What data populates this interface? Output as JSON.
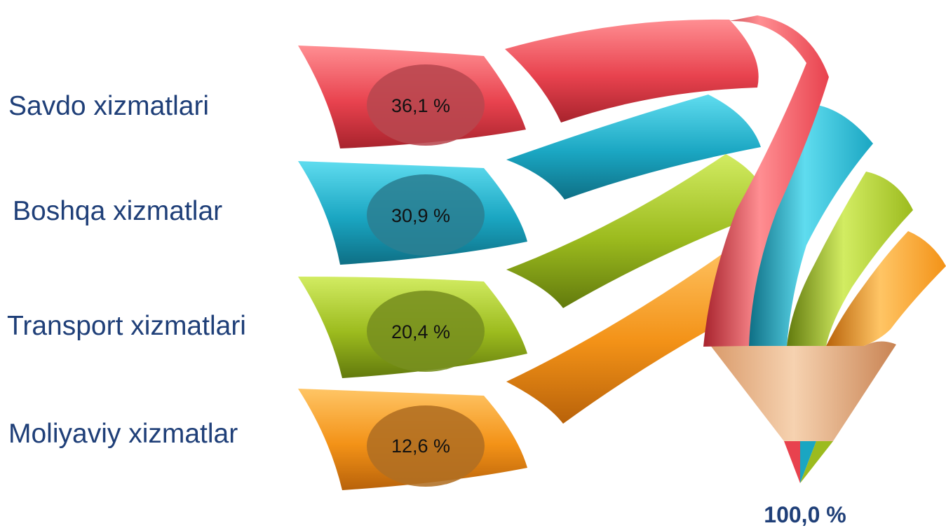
{
  "items": [
    {
      "label": "Savdo xizmatlari",
      "percent_text": "36,1 %",
      "value": 36.1,
      "color": "#e8424e",
      "light": "#ff8e92",
      "dark": "#a8232d",
      "oval": "#b8474f"
    },
    {
      "label": "Boshqa xizmatlar",
      "percent_text": "30,9 %",
      "value": 30.9,
      "color": "#1aa6c2",
      "light": "#5fdcef",
      "dark": "#0e6f85",
      "oval": "#2a7f93"
    },
    {
      "label": "Transport xizmatlari",
      "percent_text": "20,4 %",
      "value": 20.4,
      "color": "#9cbb1e",
      "light": "#d2ec62",
      "dark": "#627a0d",
      "oval": "#788f1f"
    },
    {
      "label": "Moliyaviy  xizmatlar",
      "percent_text": "12,6 %",
      "value": 12.6,
      "color": "#f39217",
      "light": "#ffc565",
      "dark": "#b8620a",
      "oval": "#b06e22"
    }
  ],
  "total_text": "100,0 %"
}
